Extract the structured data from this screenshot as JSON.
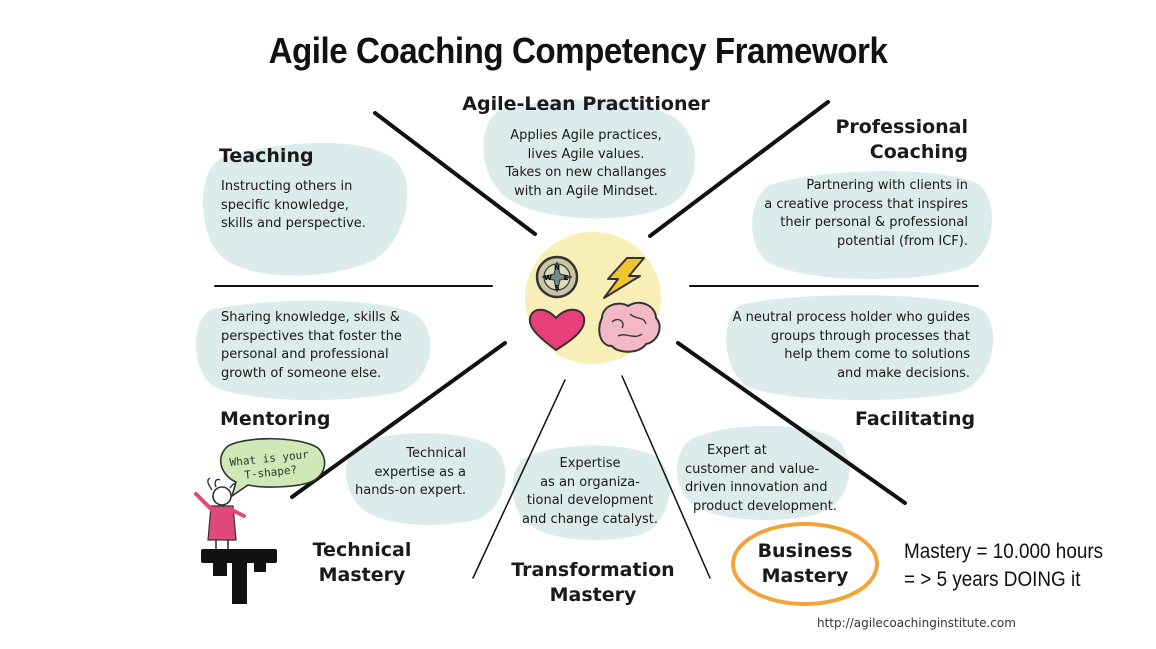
{
  "title": "Agile Coaching Competency Framework",
  "colors": {
    "blob": "#dcecea",
    "center_glow": "#f7efb5",
    "business_ring": "#f2a43a",
    "heart": "#e83e7a",
    "bolt": "#f2c52e",
    "brain": "#f2b8c6",
    "figure": "#e04a7a",
    "speech_bubble": "#cfe8b8"
  },
  "icons": [
    "compass-icon",
    "lightning-icon",
    "heart-icon",
    "brain-icon"
  ],
  "competencies": {
    "practitioner": {
      "heading": "Agile-Lean Practitioner",
      "lines": [
        "Applies Agile practices,",
        "lives Agile values.",
        "Takes on new challanges",
        "with an Agile Mindset."
      ]
    },
    "professional_coaching": {
      "heading_lines": [
        "Professional",
        "Coaching"
      ],
      "lines": [
        "Partnering with clients in",
        "a creative process that inspires",
        "their personal & professional",
        "potential (from ICF)."
      ]
    },
    "teaching": {
      "heading": "Teaching",
      "lines": [
        "Instructing others in",
        "specific knowledge,",
        "skills and perspective."
      ]
    },
    "mentoring": {
      "heading": "Mentoring",
      "lines": [
        "Sharing knowledge, skills &",
        "perspectives that foster the",
        "personal and professional",
        "growth of someone else."
      ]
    },
    "facilitating": {
      "heading": "Facilitating",
      "lines": [
        "A neutral process holder who guides",
        "groups through processes that",
        "help them come to solutions",
        "and make decisions."
      ]
    },
    "technical": {
      "heading_lines": [
        "Technical",
        "Mastery"
      ],
      "lines": [
        "Technical",
        "expertise as a",
        "hands-on expert."
      ]
    },
    "transformation": {
      "heading_lines": [
        "Transformation",
        "Mastery"
      ],
      "lines": [
        "Expertise",
        "as an organiza-",
        "tional development",
        "and change catalyst."
      ]
    },
    "business": {
      "heading_lines": [
        "Business",
        "Mastery"
      ],
      "lines": [
        "Expert at",
        "customer and value-",
        "driven innovation and",
        "product development."
      ]
    }
  },
  "speech_bubble": [
    "What is your",
    "T-shape?"
  ],
  "mastery_note": [
    "Mastery = 10.000 hours",
    "= > 5 years DOING it"
  ],
  "url": "http://agilecoachinginstitute.com"
}
